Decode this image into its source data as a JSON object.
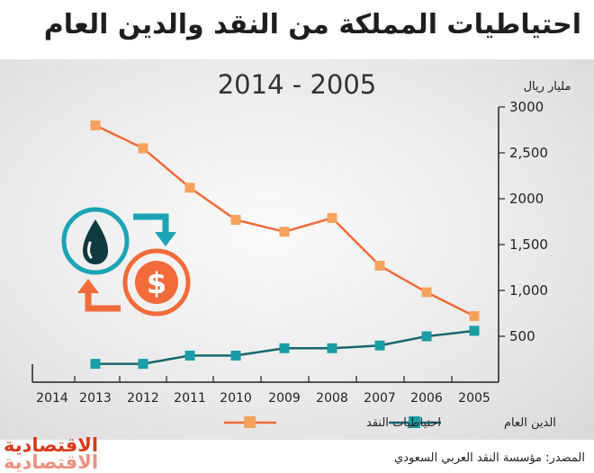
{
  "title": "احتياطيات المملكة من النقد والدين العام",
  "source": "المصدر: مؤسسة النقد العربي السعودي",
  "logo_text": "الاقتصادية",
  "chart_data": {
    "type": "line",
    "period_label": "2014  -  2005",
    "ylabel": "مليار ريال",
    "x": [
      "2014",
      "2013",
      "2012",
      "2011",
      "2010",
      "2009",
      "2008",
      "2007",
      "2006",
      "2005"
    ],
    "y_ticks": [
      "500",
      "1,000",
      "1,500",
      "2000",
      "2,500",
      "3000"
    ],
    "ylim": [
      0,
      3000
    ],
    "series": [
      {
        "name": "احتياطيات النقد",
        "color": "#f26b3a",
        "values": [
          null,
          2800,
          2550,
          2120,
          1770,
          1640,
          1790,
          1270,
          980,
          720
        ]
      },
      {
        "name": "الدين العام",
        "color": "#17666e",
        "values": [
          null,
          200,
          200,
          290,
          290,
          370,
          370,
          400,
          500,
          560
        ]
      }
    ],
    "legend_position": "bottom",
    "icons": [
      "oil-drop-icon",
      "dollar-coin-icon",
      "exchange-arrows-icon"
    ]
  }
}
